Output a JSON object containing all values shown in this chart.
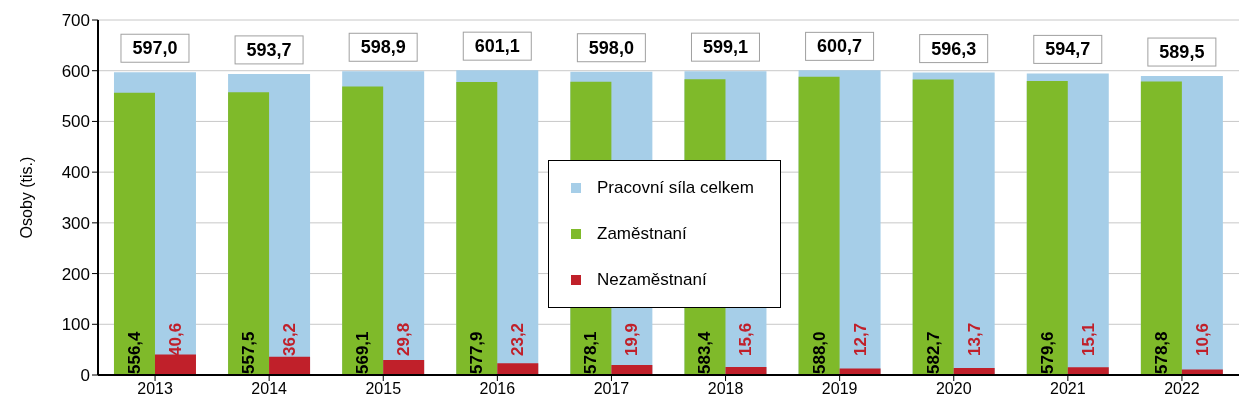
{
  "chart_data": {
    "type": "bar",
    "ylabel": "Osoby (tis.)",
    "categories": [
      "2013",
      "2014",
      "2015",
      "2016",
      "2017",
      "2018",
      "2019",
      "2020",
      "2021",
      "2022"
    ],
    "series": [
      {
        "name": "Pracovní síla celkem",
        "color": "#a6cee8",
        "values": [
          597.0,
          593.7,
          598.9,
          601.1,
          598.0,
          599.1,
          600.7,
          596.3,
          594.7,
          589.5
        ],
        "value_labels": [
          "597,0",
          "593,7",
          "598,9",
          "601,1",
          "598,0",
          "599,1",
          "600,7",
          "596,3",
          "594,7",
          "589,5"
        ]
      },
      {
        "name": "Zaměstnaní",
        "color": "#7fba2a",
        "values": [
          556.4,
          557.5,
          569.1,
          577.9,
          578.1,
          583.4,
          588.0,
          582.7,
          579.6,
          578.8
        ],
        "value_labels": [
          "556,4",
          "557,5",
          "569,1",
          "577,9",
          "578,1",
          "583,4",
          "588,0",
          "582,7",
          "579,6",
          "578,8"
        ]
      },
      {
        "name": "Nezaměstnaní",
        "color": "#c0202a",
        "values": [
          40.6,
          36.2,
          29.8,
          23.2,
          19.9,
          15.6,
          12.7,
          13.7,
          15.1,
          10.6
        ],
        "value_labels": [
          "40,6",
          "36,2",
          "29,8",
          "23,2",
          "19,9",
          "15,6",
          "12,7",
          "13,7",
          "15,1",
          "10,6"
        ]
      }
    ],
    "ylim": [
      0,
      700
    ],
    "yticks": [
      0,
      100,
      200,
      300,
      400,
      500,
      600,
      700
    ],
    "grid": "y",
    "legend": "center"
  }
}
